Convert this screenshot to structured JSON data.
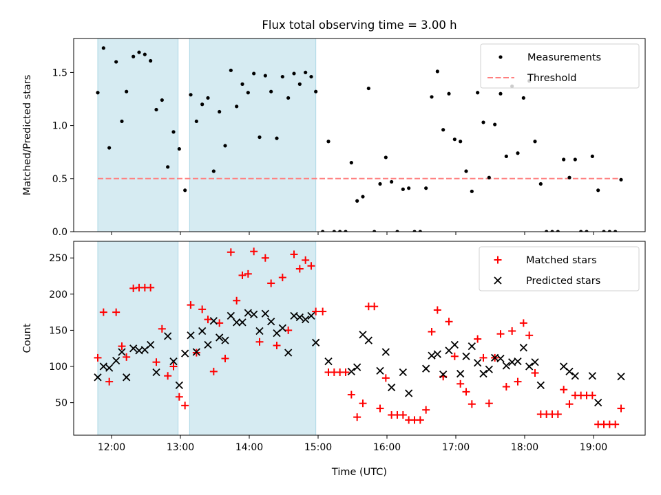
{
  "chart_data": [
    {
      "type": "scatter",
      "title": "Flux total observing time = 3.00 h",
      "xlabel": "",
      "ylabel": "Matched/Predicted stars",
      "xlim": [
        "11:27",
        "19:45"
      ],
      "ylim": [
        0,
        1.82
      ],
      "x_ticks": [
        "12:00",
        "13:00",
        "14:00",
        "15:00",
        "16:00",
        "17:00",
        "18:00",
        "19:00"
      ],
      "y_ticks": [
        "0.0",
        "0.5",
        "1.0",
        "1.5"
      ],
      "y_tick_values": [
        0,
        0.5,
        1.0,
        1.5
      ],
      "shaded_intervals": [
        [
          "11:48",
          "12:58"
        ],
        [
          "13:08",
          "14:58"
        ]
      ],
      "threshold": 0.5,
      "legend": {
        "placement": "top-right",
        "entries": [
          "Measurements",
          "Threshold"
        ]
      },
      "series": [
        {
          "name": "Measurements",
          "x": [
            "11:48",
            "11:53",
            "11:58",
            "12:04",
            "12:09",
            "12:13",
            "12:19",
            "12:24",
            "12:29",
            "12:34",
            "12:39",
            "12:44",
            "12:49",
            "12:54",
            "12:59",
            "13:04",
            "13:09",
            "13:14",
            "13:19",
            "13:24",
            "13:29",
            "13:34",
            "13:39",
            "13:44",
            "13:49",
            "13:54",
            "13:59",
            "14:04",
            "14:09",
            "14:14",
            "14:19",
            "14:24",
            "14:29",
            "14:34",
            "14:39",
            "14:44",
            "14:49",
            "14:54",
            "14:58",
            "15:04",
            "15:09",
            "15:14",
            "15:19",
            "15:24",
            "15:29",
            "15:34",
            "15:39",
            "15:44",
            "15:49",
            "15:54",
            "15:59",
            "16:04",
            "16:09",
            "16:14",
            "16:19",
            "16:24",
            "16:29",
            "16:34",
            "16:39",
            "16:44",
            "16:49",
            "16:54",
            "16:59",
            "17:04",
            "17:09",
            "17:14",
            "17:19",
            "17:24",
            "17:29",
            "17:34",
            "17:39",
            "17:44",
            "17:49",
            "17:54",
            "17:59",
            "18:04",
            "18:09",
            "18:14",
            "18:19",
            "18:24",
            "18:29",
            "18:34",
            "18:39",
            "18:44",
            "18:49",
            "18:54",
            "18:59",
            "19:04",
            "19:09",
            "19:14",
            "19:19",
            "19:24"
          ],
          "y": [
            1.31,
            1.73,
            0.79,
            1.6,
            1.04,
            1.32,
            1.65,
            1.69,
            1.67,
            1.61,
            1.15,
            1.24,
            0.61,
            0.94,
            0.78,
            0.39,
            1.29,
            1.04,
            1.2,
            1.26,
            0.57,
            1.13,
            0.81,
            1.52,
            1.18,
            1.39,
            1.31,
            1.49,
            0.89,
            1.47,
            1.32,
            0.88,
            1.46,
            1.26,
            1.49,
            1.39,
            1.5,
            1.46,
            1.32,
            0.0,
            0.85,
            0.0,
            0.0,
            0.0,
            0.65,
            0.29,
            0.33,
            1.35,
            0.0,
            0.45,
            0.7,
            0.47,
            0.0,
            0.4,
            0.41,
            0.0,
            0.0,
            0.41,
            1.27,
            1.51,
            0.96,
            1.3,
            0.87,
            0.85,
            0.57,
            0.38,
            1.31,
            1.03,
            0.51,
            1.01,
            1.3,
            0.71,
            1.37,
            0.74,
            1.26,
            1.42,
            0.85,
            0.45,
            0.0,
            0.0,
            0.0,
            0.68,
            0.51,
            0.68,
            0.0,
            0.0,
            0.71,
            0.39,
            0.0,
            0.0,
            0.0,
            0.49
          ]
        }
      ]
    },
    {
      "type": "scatter",
      "title": "",
      "xlabel": "Time (UTC)",
      "ylabel": "Count",
      "xlim": [
        "11:27",
        "19:45"
      ],
      "ylim": [
        5,
        273
      ],
      "x_ticks": [
        "12:00",
        "13:00",
        "14:00",
        "15:00",
        "16:00",
        "17:00",
        "18:00",
        "19:00"
      ],
      "y_ticks": [
        "50",
        "100",
        "150",
        "200",
        "250"
      ],
      "y_tick_values": [
        50,
        100,
        150,
        200,
        250
      ],
      "shaded_intervals": [
        [
          "11:48",
          "12:58"
        ],
        [
          "13:08",
          "14:58"
        ]
      ],
      "legend": {
        "placement": "top-right",
        "entries": [
          "Matched stars",
          "Predicted stars"
        ]
      },
      "series": [
        {
          "name": "Matched stars",
          "x": [
            "11:48",
            "11:53",
            "11:58",
            "12:04",
            "12:09",
            "12:13",
            "12:19",
            "12:24",
            "12:29",
            "12:34",
            "12:39",
            "12:44",
            "12:49",
            "12:54",
            "12:59",
            "13:04",
            "13:09",
            "13:14",
            "13:19",
            "13:24",
            "13:29",
            "13:34",
            "13:39",
            "13:44",
            "13:49",
            "13:54",
            "13:59",
            "14:04",
            "14:09",
            "14:14",
            "14:19",
            "14:24",
            "14:29",
            "14:34",
            "14:39",
            "14:44",
            "14:49",
            "14:54",
            "14:58",
            "15:04",
            "15:09",
            "15:14",
            "15:19",
            "15:24",
            "15:29",
            "15:34",
            "15:39",
            "15:44",
            "15:49",
            "15:54",
            "15:59",
            "16:04",
            "16:09",
            "16:14",
            "16:19",
            "16:24",
            "16:29",
            "16:34",
            "16:39",
            "16:44",
            "16:49",
            "16:54",
            "16:59",
            "17:04",
            "17:09",
            "17:14",
            "17:19",
            "17:24",
            "17:29",
            "17:34",
            "17:39",
            "17:44",
            "17:49",
            "17:54",
            "17:59",
            "18:04",
            "18:09",
            "18:14",
            "18:19",
            "18:24",
            "18:29",
            "18:34",
            "18:39",
            "18:44",
            "18:49",
            "18:54",
            "18:59",
            "19:04",
            "19:09",
            "19:14",
            "19:19",
            "19:24"
          ],
          "y": [
            112,
            175,
            79,
            175,
            128,
            113,
            208,
            209,
            209,
            209,
            106,
            152,
            87,
            100,
            58,
            46,
            185,
            119,
            179,
            165,
            93,
            160,
            111,
            258,
            191,
            226,
            228,
            259,
            134,
            250,
            215,
            129,
            223,
            150,
            255,
            235,
            247,
            239,
            176,
            176,
            92,
            92,
            92,
            92,
            61,
            30,
            49,
            183,
            183,
            42,
            84,
            33,
            33,
            33,
            26,
            26,
            26,
            40,
            148,
            178,
            86,
            162,
            114,
            76,
            65,
            48,
            138,
            112,
            49,
            112,
            145,
            72,
            149,
            79,
            160,
            143,
            91,
            34,
            34,
            34,
            34,
            68,
            48,
            60,
            60,
            60,
            60,
            20,
            20,
            20,
            20,
            42
          ]
        },
        {
          "name": "Predicted stars",
          "x": [
            "11:48",
            "11:53",
            "11:58",
            "12:04",
            "12:09",
            "12:13",
            "12:19",
            "12:24",
            "12:29",
            "12:34",
            "12:39",
            "12:49",
            "12:54",
            "12:59",
            "13:04",
            "13:09",
            "13:14",
            "13:19",
            "13:24",
            "13:29",
            "13:34",
            "13:39",
            "13:44",
            "13:49",
            "13:54",
            "13:59",
            "14:04",
            "14:09",
            "14:14",
            "14:19",
            "14:24",
            "14:29",
            "14:34",
            "14:39",
            "14:44",
            "14:49",
            "14:54",
            "14:58",
            "15:09",
            "15:29",
            "15:34",
            "15:39",
            "15:44",
            "15:54",
            "15:59",
            "16:04",
            "16:14",
            "16:19",
            "16:34",
            "16:39",
            "16:44",
            "16:49",
            "16:54",
            "16:59",
            "17:04",
            "17:09",
            "17:14",
            "17:19",
            "17:24",
            "17:29",
            "17:34",
            "17:39",
            "17:44",
            "17:49",
            "17:54",
            "17:59",
            "18:04",
            "18:09",
            "18:14",
            "18:34",
            "18:39",
            "18:44",
            "18:59",
            "19:04",
            "19:24"
          ],
          "y": [
            85,
            100,
            98,
            108,
            120,
            85,
            125,
            122,
            123,
            130,
            92,
            142,
            107,
            74,
            118,
            143,
            120,
            149,
            130,
            163,
            140,
            136,
            170,
            161,
            161,
            174,
            172,
            149,
            173,
            162,
            146,
            153,
            119,
            170,
            168,
            165,
            170,
            133,
            107,
            93,
            99,
            144,
            136,
            94,
            120,
            71,
            92,
            63,
            97,
            115,
            117,
            89,
            122,
            130,
            90,
            114,
            128,
            105,
            90,
            96,
            112,
            111,
            101,
            106,
            107,
            126,
            100,
            106,
            74,
            100,
            93,
            87,
            87,
            50,
            86
          ]
        }
      ]
    }
  ],
  "colors": {
    "shade": "#add8e6",
    "measurements": "#000000",
    "threshold": "#ff7f7f",
    "matched": "#ff0000",
    "predicted": "#000000"
  }
}
